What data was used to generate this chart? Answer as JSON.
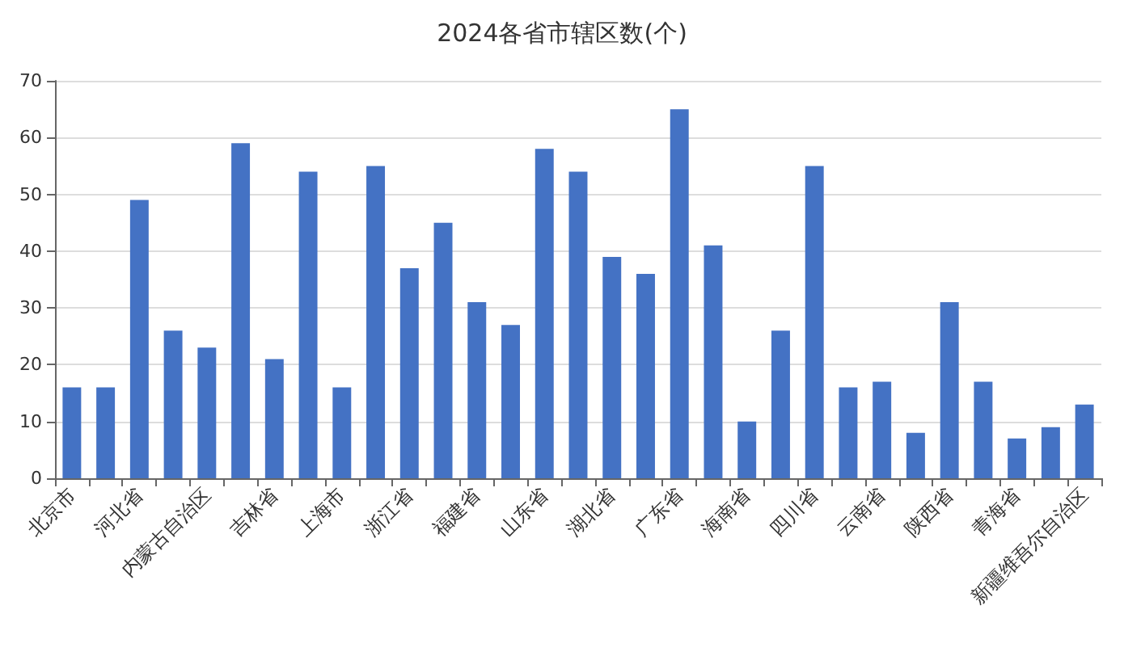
{
  "chart_data": {
    "type": "bar",
    "title": "2024各省市辖区数(个)",
    "categories": [
      "北京市",
      null,
      "河北省",
      null,
      "内蒙古自治区",
      null,
      "吉林省",
      null,
      "上海市",
      null,
      "浙江省",
      null,
      "福建省",
      null,
      "山东省",
      null,
      "湖北省",
      null,
      "广东省",
      null,
      "海南省",
      null,
      "四川省",
      null,
      "云南省",
      null,
      "陕西省",
      null,
      "青海省",
      null,
      "新疆维吾尔自治区"
    ],
    "values": [
      16,
      16,
      49,
      26,
      23,
      59,
      21,
      54,
      16,
      55,
      37,
      45,
      31,
      27,
      58,
      54,
      39,
      36,
      65,
      41,
      10,
      26,
      55,
      16,
      17,
      8,
      31,
      17,
      7,
      9,
      13
    ],
    "color": "#4472c4",
    "ylim": [
      0,
      70
    ],
    "yticks": [
      0,
      10,
      20,
      30,
      40,
      50,
      60,
      70
    ],
    "grid": "y"
  }
}
